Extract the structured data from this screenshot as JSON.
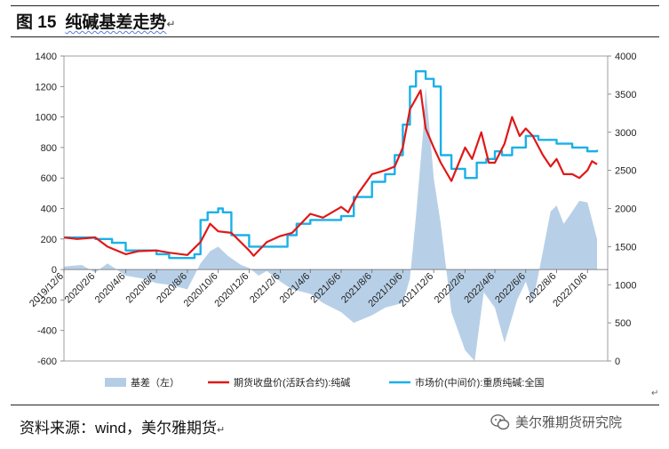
{
  "figure": {
    "label": "图 15",
    "title": "纯碱基差走势"
  },
  "source": "资料来源：wind，美尔雅期货",
  "watermark": "美尔雅期货研究院",
  "chart_data": {
    "type": "line",
    "title": "",
    "xlabel": "",
    "ylabel": "",
    "ylabel_right": "",
    "x_ticks": [
      "2019/12/6",
      "2020/2/6",
      "2020/4/6",
      "2020/6/6",
      "2020/8/6",
      "2020/10/6",
      "2020/12/6",
      "2021/2/6",
      "2021/4/6",
      "2021/6/6",
      "2021/8/6",
      "2021/10/6",
      "2021/12/6",
      "2022/2/6",
      "2022/4/6",
      "2022/6/6",
      "2022/8/6",
      "2022/10/6"
    ],
    "y_left": {
      "ylim": [
        -600,
        1400
      ],
      "ticks": [
        -600,
        -400,
        -200,
        0,
        200,
        400,
        600,
        800,
        1000,
        1200,
        1400
      ]
    },
    "y_right": {
      "ylim": [
        0,
        4000
      ],
      "ticks": [
        0,
        500,
        1000,
        1500,
        2000,
        2500,
        3000,
        3500,
        4000
      ]
    },
    "grid": false,
    "legend_position": "bottom",
    "series": [
      {
        "name": "基差（左）",
        "kind": "area",
        "axis": "left",
        "color": "#b4cde6",
        "points": [
          [
            "2019-12-06",
            20
          ],
          [
            "2020-01-10",
            30
          ],
          [
            "2020-02-06",
            -20
          ],
          [
            "2020-03-01",
            40
          ],
          [
            "2020-04-06",
            -40
          ],
          [
            "2020-05-10",
            -60
          ],
          [
            "2020-06-06",
            -90
          ],
          [
            "2020-07-01",
            -100
          ],
          [
            "2020-08-06",
            -130
          ],
          [
            "2020-09-01",
            40
          ],
          [
            "2020-09-20",
            120
          ],
          [
            "2020-10-06",
            150
          ],
          [
            "2020-10-25",
            90
          ],
          [
            "2020-11-20",
            30
          ],
          [
            "2020-12-06",
            10
          ],
          [
            "2020-12-25",
            -40
          ],
          [
            "2021-01-10",
            -10
          ],
          [
            "2021-02-06",
            -80
          ],
          [
            "2021-03-01",
            -130
          ],
          [
            "2021-04-06",
            -160
          ],
          [
            "2021-05-01",
            -220
          ],
          [
            "2021-06-06",
            -280
          ],
          [
            "2021-07-01",
            -350
          ],
          [
            "2021-08-06",
            -300
          ],
          [
            "2021-09-01",
            -250
          ],
          [
            "2021-10-06",
            -220
          ],
          [
            "2021-10-20",
            -60
          ],
          [
            "2021-11-01",
            350
          ],
          [
            "2021-11-15",
            900
          ],
          [
            "2021-11-20",
            1200
          ],
          [
            "2021-12-01",
            800
          ],
          [
            "2021-12-06",
            600
          ],
          [
            "2021-12-20",
            300
          ],
          [
            "2022-01-10",
            -280
          ],
          [
            "2022-02-06",
            -530
          ],
          [
            "2022-02-25",
            -600
          ],
          [
            "2022-03-15",
            -150
          ],
          [
            "2022-04-06",
            -250
          ],
          [
            "2022-04-25",
            -480
          ],
          [
            "2022-05-20",
            -200
          ],
          [
            "2022-06-06",
            -80
          ],
          [
            "2022-06-20",
            -220
          ],
          [
            "2022-07-10",
            120
          ],
          [
            "2022-07-25",
            380
          ],
          [
            "2022-08-06",
            420
          ],
          [
            "2022-08-20",
            300
          ],
          [
            "2022-09-06",
            380
          ],
          [
            "2022-09-20",
            450
          ],
          [
            "2022-10-06",
            440
          ],
          [
            "2022-10-25",
            200
          ]
        ]
      },
      {
        "name": "期货收盘价(活跃合约):纯碱",
        "kind": "line",
        "axis": "right",
        "color": "#e01818",
        "points": [
          [
            "2019-12-06",
            1620
          ],
          [
            "2020-01-01",
            1600
          ],
          [
            "2020-02-06",
            1620
          ],
          [
            "2020-03-01",
            1500
          ],
          [
            "2020-04-06",
            1400
          ],
          [
            "2020-05-01",
            1440
          ],
          [
            "2020-06-06",
            1450
          ],
          [
            "2020-07-01",
            1420
          ],
          [
            "2020-08-06",
            1390
          ],
          [
            "2020-09-01",
            1560
          ],
          [
            "2020-09-20",
            1800
          ],
          [
            "2020-10-06",
            1700
          ],
          [
            "2020-11-01",
            1680
          ],
          [
            "2020-12-06",
            1450
          ],
          [
            "2020-12-15",
            1380
          ],
          [
            "2021-01-10",
            1560
          ],
          [
            "2021-02-06",
            1640
          ],
          [
            "2021-03-01",
            1680
          ],
          [
            "2021-04-06",
            1930
          ],
          [
            "2021-05-01",
            1880
          ],
          [
            "2021-06-06",
            2020
          ],
          [
            "2021-06-20",
            1950
          ],
          [
            "2021-07-10",
            2200
          ],
          [
            "2021-08-06",
            2450
          ],
          [
            "2021-09-01",
            2500
          ],
          [
            "2021-09-20",
            2550
          ],
          [
            "2021-10-06",
            2800
          ],
          [
            "2021-10-20",
            3300
          ],
          [
            "2021-11-10",
            3550
          ],
          [
            "2021-11-20",
            3050
          ],
          [
            "2021-12-06",
            2800
          ],
          [
            "2021-12-20",
            2600
          ],
          [
            "2022-01-10",
            2360
          ],
          [
            "2022-02-06",
            2800
          ],
          [
            "2022-02-20",
            2650
          ],
          [
            "2022-03-10",
            3000
          ],
          [
            "2022-03-25",
            2600
          ],
          [
            "2022-04-06",
            2600
          ],
          [
            "2022-04-25",
            2850
          ],
          [
            "2022-05-10",
            3200
          ],
          [
            "2022-05-25",
            2950
          ],
          [
            "2022-06-06",
            3050
          ],
          [
            "2022-06-20",
            2950
          ],
          [
            "2022-07-10",
            2700
          ],
          [
            "2022-07-25",
            2550
          ],
          [
            "2022-08-06",
            2650
          ],
          [
            "2022-08-20",
            2450
          ],
          [
            "2022-09-06",
            2450
          ],
          [
            "2022-09-20",
            2400
          ],
          [
            "2022-10-06",
            2500
          ],
          [
            "2022-10-15",
            2620
          ],
          [
            "2022-10-25",
            2580
          ]
        ]
      },
      {
        "name": "市场价(中间价):重质纯碱:全国",
        "kind": "step",
        "axis": "right",
        "color": "#1ab0e8",
        "points": [
          [
            "2019-12-06",
            1620
          ],
          [
            "2020-02-06",
            1600
          ],
          [
            "2020-03-10",
            1550
          ],
          [
            "2020-04-06",
            1450
          ],
          [
            "2020-06-06",
            1400
          ],
          [
            "2020-07-01",
            1350
          ],
          [
            "2020-08-20",
            1400
          ],
          [
            "2020-09-01",
            1850
          ],
          [
            "2020-09-15",
            1950
          ],
          [
            "2020-10-06",
            2000
          ],
          [
            "2020-10-15",
            1950
          ],
          [
            "2020-11-01",
            1650
          ],
          [
            "2020-12-06",
            1500
          ],
          [
            "2021-01-01",
            1500
          ],
          [
            "2021-01-20",
            1500
          ],
          [
            "2021-02-20",
            1650
          ],
          [
            "2021-03-10",
            1800
          ],
          [
            "2021-04-06",
            1850
          ],
          [
            "2021-06-06",
            1900
          ],
          [
            "2021-07-01",
            2150
          ],
          [
            "2021-08-06",
            2350
          ],
          [
            "2021-09-01",
            2450
          ],
          [
            "2021-09-20",
            2700
          ],
          [
            "2021-10-06",
            3100
          ],
          [
            "2021-10-20",
            3600
          ],
          [
            "2021-11-01",
            3800
          ],
          [
            "2021-11-20",
            3700
          ],
          [
            "2021-12-06",
            3600
          ],
          [
            "2021-12-20",
            2700
          ],
          [
            "2022-01-10",
            2520
          ],
          [
            "2022-02-06",
            2400
          ],
          [
            "2022-03-01",
            2600
          ],
          [
            "2022-03-20",
            2650
          ],
          [
            "2022-04-06",
            2750
          ],
          [
            "2022-04-20",
            2700
          ],
          [
            "2022-05-10",
            2800
          ],
          [
            "2022-06-06",
            2950
          ],
          [
            "2022-07-01",
            2900
          ],
          [
            "2022-08-06",
            2850
          ],
          [
            "2022-09-06",
            2800
          ],
          [
            "2022-10-06",
            2750
          ],
          [
            "2022-10-25",
            2770
          ]
        ]
      }
    ]
  }
}
